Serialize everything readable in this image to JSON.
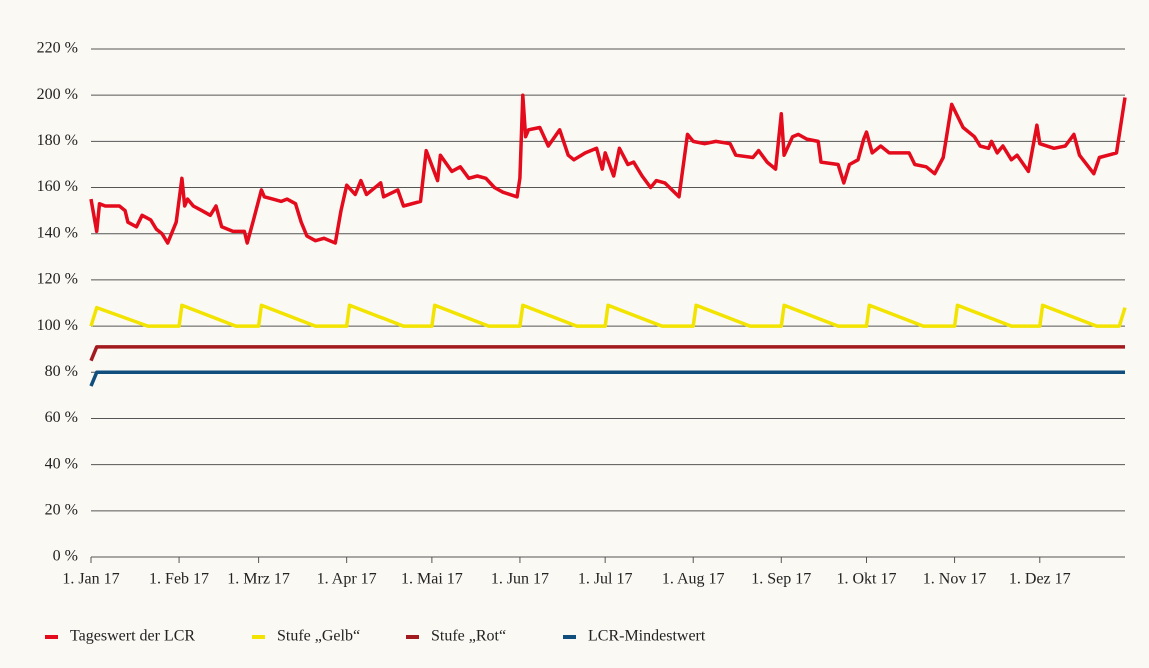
{
  "chart_data": {
    "type": "line",
    "xlim": [
      "2017-01-01",
      "2017-12-31"
    ],
    "xticks": [
      {
        "value": "2017-01-01",
        "label": "1. Jan 17"
      },
      {
        "value": "2017-02-01",
        "label": "1. Feb 17"
      },
      {
        "value": "2017-03-01",
        "label": "1. Mrz 17"
      },
      {
        "value": "2017-04-01",
        "label": "1. Apr 17"
      },
      {
        "value": "2017-05-01",
        "label": "1. Mai 17"
      },
      {
        "value": "2017-06-01",
        "label": "1. Jun 17"
      },
      {
        "value": "2017-07-01",
        "label": "1. Jul 17"
      },
      {
        "value": "2017-08-01",
        "label": "1. Aug 17"
      },
      {
        "value": "2017-09-01",
        "label": "1. Sep 17"
      },
      {
        "value": "2017-10-01",
        "label": "1. Okt 17"
      },
      {
        "value": "2017-11-01",
        "label": "1. Nov 17"
      },
      {
        "value": "2017-12-01",
        "label": "1. Dez 17"
      }
    ],
    "ylim": [
      0,
      220
    ],
    "yticks": [
      {
        "value": 0,
        "label": "0 %"
      },
      {
        "value": 20,
        "label": "20 %"
      },
      {
        "value": 40,
        "label": "40 %"
      },
      {
        "value": 60,
        "label": "60 %"
      },
      {
        "value": 80,
        "label": "80 %"
      },
      {
        "value": 100,
        "label": "100 %"
      },
      {
        "value": 120,
        "label": "120 %"
      },
      {
        "value": 140,
        "label": "140 %"
      },
      {
        "value": 160,
        "label": "160 %"
      },
      {
        "value": 180,
        "label": "180 %"
      },
      {
        "value": 200,
        "label": "200 %"
      },
      {
        "value": 220,
        "label": "220 %"
      }
    ],
    "grid": true,
    "legend": "bottom",
    "series": [
      {
        "name": "Tageswert der LCR",
        "color": "#e30b1c",
        "x": [
          "2017-01-01",
          "2017-01-03",
          "2017-01-04",
          "2017-01-06",
          "2017-01-11",
          "2017-01-13",
          "2017-01-14",
          "2017-01-17",
          "2017-01-19",
          "2017-01-22",
          "2017-01-24",
          "2017-01-26",
          "2017-01-28",
          "2017-01-31",
          "2017-02-02",
          "2017-02-03",
          "2017-02-04",
          "2017-02-06",
          "2017-02-09",
          "2017-02-12",
          "2017-02-14",
          "2017-02-16",
          "2017-02-20",
          "2017-02-24",
          "2017-02-25",
          "2017-02-27",
          "2017-03-02",
          "2017-03-03",
          "2017-03-06",
          "2017-03-09",
          "2017-03-11",
          "2017-03-14",
          "2017-03-16",
          "2017-03-18",
          "2017-03-21",
          "2017-03-24",
          "2017-03-28",
          "2017-03-30",
          "2017-04-01",
          "2017-04-04",
          "2017-04-06",
          "2017-04-08",
          "2017-04-12",
          "2017-04-13",
          "2017-04-14",
          "2017-04-19",
          "2017-04-21",
          "2017-04-27",
          "2017-04-29",
          "2017-05-03",
          "2017-05-04",
          "2017-05-08",
          "2017-05-11",
          "2017-05-14",
          "2017-05-17",
          "2017-05-20",
          "2017-05-23",
          "2017-05-26",
          "2017-05-31",
          "2017-06-01",
          "2017-06-02",
          "2017-06-03",
          "2017-06-04",
          "2017-06-08",
          "2017-06-11",
          "2017-06-15",
          "2017-06-18",
          "2017-06-20",
          "2017-06-24",
          "2017-06-28",
          "2017-06-30",
          "2017-07-01",
          "2017-07-04",
          "2017-07-06",
          "2017-07-09",
          "2017-07-11",
          "2017-07-14",
          "2017-07-17",
          "2017-07-19",
          "2017-07-22",
          "2017-07-27",
          "2017-07-30",
          "2017-08-01",
          "2017-08-05",
          "2017-08-09",
          "2017-08-14",
          "2017-08-16",
          "2017-08-22",
          "2017-08-24",
          "2017-08-27",
          "2017-08-30",
          "2017-09-01",
          "2017-09-02",
          "2017-09-05",
          "2017-09-07",
          "2017-09-10",
          "2017-09-14",
          "2017-09-15",
          "2017-09-21",
          "2017-09-23",
          "2017-09-25",
          "2017-09-28",
          "2017-09-30",
          "2017-10-01",
          "2017-10-03",
          "2017-10-06",
          "2017-10-09",
          "2017-10-16",
          "2017-10-18",
          "2017-10-22",
          "2017-10-25",
          "2017-10-28",
          "2017-10-31",
          "2017-11-04",
          "2017-11-08",
          "2017-11-10",
          "2017-11-13",
          "2017-11-14",
          "2017-11-16",
          "2017-11-18",
          "2017-11-21",
          "2017-11-23",
          "2017-11-27",
          "2017-11-30",
          "2017-12-01",
          "2017-12-06",
          "2017-12-10",
          "2017-12-13",
          "2017-12-15",
          "2017-12-20",
          "2017-12-22",
          "2017-12-28",
          "2017-12-31"
        ],
        "values": [
          155,
          141,
          153,
          152,
          152,
          150,
          145,
          143,
          148,
          146,
          142,
          140,
          136,
          145,
          164,
          152,
          155,
          152,
          150,
          148,
          152,
          143,
          141,
          141,
          136,
          145,
          159,
          156,
          155,
          154,
          155,
          153,
          145,
          139,
          137,
          138,
          136,
          150,
          161,
          157,
          163,
          157,
          161,
          162,
          156,
          159,
          152,
          154,
          176,
          163,
          174,
          167,
          169,
          164,
          165,
          164,
          160,
          158,
          156,
          164,
          200,
          182,
          185,
          186,
          178,
          185,
          174,
          172,
          175,
          177,
          168,
          175,
          165,
          177,
          170,
          171,
          165,
          160,
          163,
          162,
          156,
          183,
          180,
          179,
          180,
          179,
          174,
          173,
          176,
          171,
          168,
          192,
          174,
          182,
          183,
          181,
          180,
          171,
          170,
          162,
          170,
          172,
          181,
          184,
          175,
          178,
          175,
          175,
          170,
          169,
          166,
          173,
          196,
          186,
          182,
          178,
          177,
          180,
          175,
          178,
          172,
          174,
          167,
          187,
          179,
          177,
          178,
          183,
          174,
          166,
          173,
          175,
          199
        ]
      },
      {
        "name": "Stufe „Gelb“",
        "color": "#f2e400",
        "x": [
          "2017-01-01",
          "2017-01-03",
          "2017-01-21",
          "2017-02-01",
          "2017-02-02",
          "2017-02-21",
          "2017-03-01",
          "2017-03-02",
          "2017-03-21",
          "2017-04-01",
          "2017-04-02",
          "2017-04-21",
          "2017-05-01",
          "2017-05-02",
          "2017-05-21",
          "2017-06-01",
          "2017-06-02",
          "2017-06-21",
          "2017-07-01",
          "2017-07-02",
          "2017-07-21",
          "2017-08-01",
          "2017-08-02",
          "2017-08-21",
          "2017-09-01",
          "2017-09-02",
          "2017-09-21",
          "2017-10-01",
          "2017-10-02",
          "2017-10-21",
          "2017-11-01",
          "2017-11-02",
          "2017-11-21",
          "2017-12-01",
          "2017-12-02",
          "2017-12-21",
          "2017-12-29",
          "2017-12-31"
        ],
        "values": [
          100,
          108,
          100,
          100,
          109,
          100,
          100,
          109,
          100,
          100,
          109,
          100,
          100,
          109,
          100,
          100,
          109,
          100,
          100,
          109,
          100,
          100,
          109,
          100,
          100,
          109,
          100,
          100,
          109,
          100,
          100,
          109,
          100,
          100,
          109,
          100,
          100,
          108
        ]
      },
      {
        "name": "Stufe „Rot“",
        "color": "#a31a1e",
        "x": [
          "2017-01-01",
          "2017-01-03",
          "2017-12-31"
        ],
        "values": [
          85,
          91,
          91
        ]
      },
      {
        "name": "LCR-Mindestwert",
        "color": "#0f4e7d",
        "x": [
          "2017-01-01",
          "2017-01-03",
          "2017-12-31"
        ],
        "values": [
          74,
          80,
          80
        ]
      }
    ]
  }
}
